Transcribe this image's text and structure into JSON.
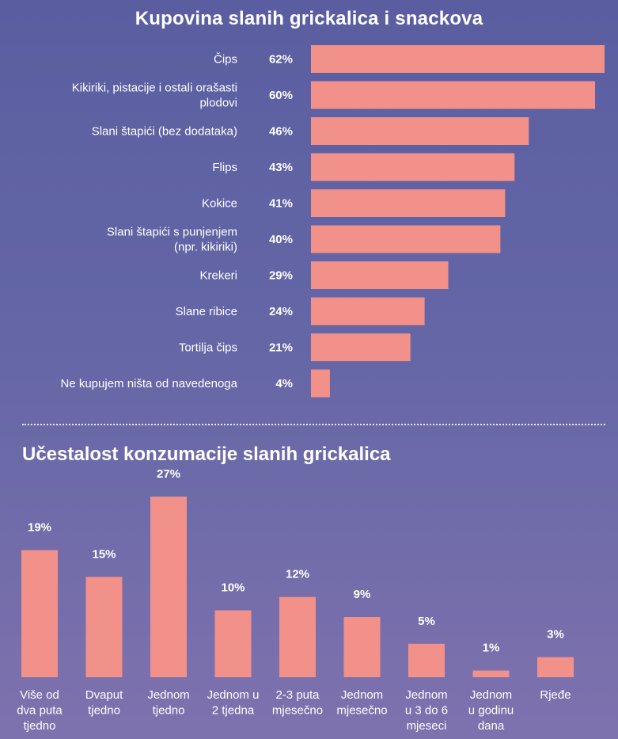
{
  "chart_data": [
    {
      "type": "bar",
      "orientation": "horizontal",
      "title": "Kupovina slanih grickalica i snackova",
      "categories": [
        "Čips",
        "Kikiriki, pistacije i ostali orašasti plodovi",
        "Slani štapići (bez dodataka)",
        "Flips",
        "Kokice",
        "Slani štapići s punjenjem (npr. kikiriki)",
        "Krekeri",
        "Slane ribice",
        "Tortilja čips",
        "Ne kupujem ništa od navedenoga"
      ],
      "category_lines": [
        [
          "Čips"
        ],
        [
          "Kikiriki, pistacije i ostali orašasti",
          "plodovi"
        ],
        [
          "Slani štapići (bez dodataka)"
        ],
        [
          "Flips"
        ],
        [
          "Kokice"
        ],
        [
          "Slani štapići s punjenjem",
          "(npr. kikiriki)"
        ],
        [
          "Krekeri"
        ],
        [
          "Slane ribice"
        ],
        [
          "Tortilja čips"
        ],
        [
          "Ne kupujem ništa od navedenoga"
        ]
      ],
      "values": [
        62,
        60,
        46,
        43,
        41,
        40,
        29,
        24,
        21,
        4
      ],
      "value_labels": [
        "62%",
        "60%",
        "46%",
        "43%",
        "41%",
        "40%",
        "29%",
        "24%",
        "21%",
        "4%"
      ],
      "unit": "%",
      "xlim": [
        0,
        62
      ],
      "grid": false,
      "bar_color": "#f2908a"
    },
    {
      "type": "bar",
      "orientation": "vertical",
      "title": "Učestalost konzumacije slanih grickalica",
      "categories": [
        "Više od dva puta tjedno",
        "Dvaput tjedno",
        "Jednom tjedno",
        "Jednom u 2 tjedna",
        "2-3 puta mjesečno",
        "Jednom mjesečno",
        "Jednom u 3 do 6 mjeseci",
        "Jednom u godinu dana",
        "Rjeđe"
      ],
      "category_lines": [
        [
          "Više od",
          "dva puta",
          "tjedno"
        ],
        [
          "Dvaput",
          "tjedno"
        ],
        [
          "Jednom",
          "tjedno"
        ],
        [
          "Jednom u",
          "2 tjedna"
        ],
        [
          "2-3 puta",
          "mjesečno"
        ],
        [
          "Jednom",
          "mjesečno"
        ],
        [
          "Jednom",
          "u 3 do 6",
          "mjeseci"
        ],
        [
          "Jednom",
          "u godinu",
          "dana"
        ],
        [
          "Rjeđe"
        ]
      ],
      "values": [
        19,
        15,
        27,
        10,
        12,
        9,
        5,
        1,
        3
      ],
      "value_labels": [
        "19%",
        "15%",
        "27%",
        "10%",
        "12%",
        "9%",
        "5%",
        "1%",
        "3%"
      ],
      "unit": "%",
      "ylim": [
        0,
        27
      ],
      "grid": false,
      "bar_color": "#f2908a"
    }
  ]
}
